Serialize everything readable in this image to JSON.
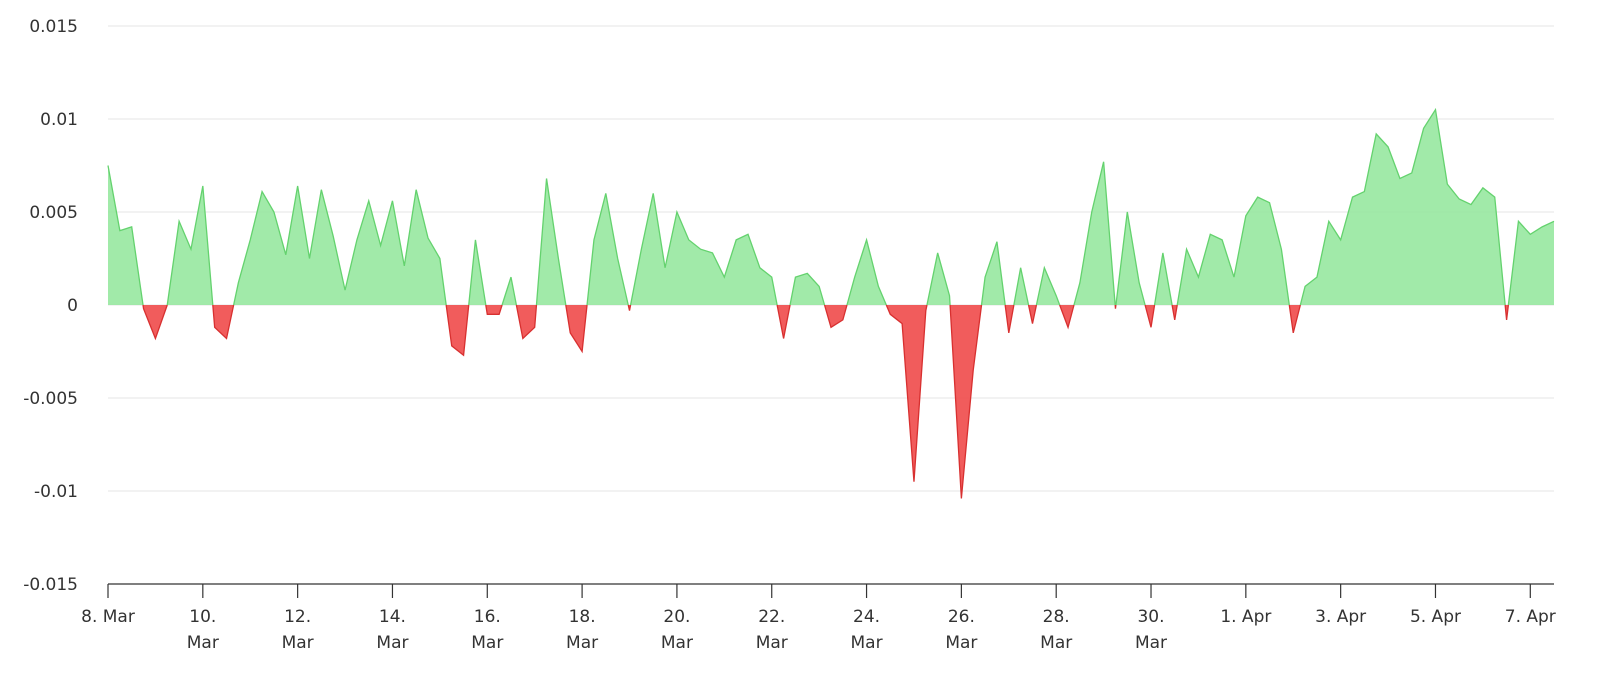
{
  "chart_data": {
    "type": "area",
    "title": "",
    "xlabel": "",
    "ylabel": "",
    "grid": true,
    "legend": "none",
    "x_range": [
      "2024-03-08",
      "2024-04-07T12:00"
    ],
    "ylim": [
      -0.015,
      0.015
    ],
    "y_ticks": [
      -0.015,
      -0.01,
      -0.005,
      0,
      0.005,
      0.01,
      0.015
    ],
    "y_tick_labels": [
      "-0.015",
      "-0.01",
      "-0.005",
      "0",
      "0.005",
      "0.01",
      "0.015"
    ],
    "x_ticks": [
      {
        "date": "2024-03-08",
        "label": [
          "8. Mar"
        ]
      },
      {
        "date": "2024-03-10",
        "label": [
          "10.",
          "Mar"
        ]
      },
      {
        "date": "2024-03-12",
        "label": [
          "12.",
          "Mar"
        ]
      },
      {
        "date": "2024-03-14",
        "label": [
          "14.",
          "Mar"
        ]
      },
      {
        "date": "2024-03-16",
        "label": [
          "16.",
          "Mar"
        ]
      },
      {
        "date": "2024-03-18",
        "label": [
          "18.",
          "Mar"
        ]
      },
      {
        "date": "2024-03-20",
        "label": [
          "20.",
          "Mar"
        ]
      },
      {
        "date": "2024-03-22",
        "label": [
          "22.",
          "Mar"
        ]
      },
      {
        "date": "2024-03-24",
        "label": [
          "24.",
          "Mar"
        ]
      },
      {
        "date": "2024-03-26",
        "label": [
          "26.",
          "Mar"
        ]
      },
      {
        "date": "2024-03-28",
        "label": [
          "28.",
          "Mar"
        ]
      },
      {
        "date": "2024-03-30",
        "label": [
          "30.",
          "Mar"
        ]
      },
      {
        "date": "2024-04-01",
        "label": [
          "1. Apr"
        ]
      },
      {
        "date": "2024-04-03",
        "label": [
          "3. Apr"
        ]
      },
      {
        "date": "2024-04-05",
        "label": [
          "5. Apr"
        ]
      },
      {
        "date": "2024-04-07",
        "label": [
          "7. Apr"
        ]
      }
    ],
    "colors": {
      "positive_fill": "#90e69a",
      "positive_line": "#64d26e",
      "negative_fill": "#f04a4a",
      "negative_line": "#d83030"
    },
    "series": [
      {
        "x": [
          "2024-03-08T00:00",
          "2024-03-08T06:00",
          "2024-03-08T12:00",
          "2024-03-08T18:00",
          "2024-03-09T00:00",
          "2024-03-09T06:00",
          "2024-03-09T12:00",
          "2024-03-09T18:00",
          "2024-03-10T00:00",
          "2024-03-10T06:00",
          "2024-03-10T12:00",
          "2024-03-10T18:00",
          "2024-03-11T00:00",
          "2024-03-11T06:00",
          "2024-03-11T12:00",
          "2024-03-11T18:00",
          "2024-03-12T00:00",
          "2024-03-12T06:00",
          "2024-03-12T12:00",
          "2024-03-12T18:00",
          "2024-03-13T00:00",
          "2024-03-13T06:00",
          "2024-03-13T12:00",
          "2024-03-13T18:00",
          "2024-03-14T00:00",
          "2024-03-14T06:00",
          "2024-03-14T12:00",
          "2024-03-14T18:00",
          "2024-03-15T00:00",
          "2024-03-15T06:00",
          "2024-03-15T12:00",
          "2024-03-15T18:00",
          "2024-03-16T00:00",
          "2024-03-16T06:00",
          "2024-03-16T12:00",
          "2024-03-16T18:00",
          "2024-03-17T00:00",
          "2024-03-17T06:00",
          "2024-03-17T12:00",
          "2024-03-17T18:00",
          "2024-03-18T00:00",
          "2024-03-18T06:00",
          "2024-03-18T12:00",
          "2024-03-18T18:00",
          "2024-03-19T00:00",
          "2024-03-19T06:00",
          "2024-03-19T12:00",
          "2024-03-19T18:00",
          "2024-03-20T00:00",
          "2024-03-20T06:00",
          "2024-03-20T12:00",
          "2024-03-20T18:00",
          "2024-03-21T00:00",
          "2024-03-21T06:00",
          "2024-03-21T12:00",
          "2024-03-21T18:00",
          "2024-03-22T00:00",
          "2024-03-22T06:00",
          "2024-03-22T12:00",
          "2024-03-22T18:00",
          "2024-03-23T00:00",
          "2024-03-23T06:00",
          "2024-03-23T12:00",
          "2024-03-23T18:00",
          "2024-03-24T00:00",
          "2024-03-24T06:00",
          "2024-03-24T12:00",
          "2024-03-24T18:00",
          "2024-03-25T00:00",
          "2024-03-25T06:00",
          "2024-03-25T12:00",
          "2024-03-25T18:00",
          "2024-03-26T00:00",
          "2024-03-26T06:00",
          "2024-03-26T12:00",
          "2024-03-26T18:00",
          "2024-03-27T00:00",
          "2024-03-27T06:00",
          "2024-03-27T12:00",
          "2024-03-27T18:00",
          "2024-03-28T00:00",
          "2024-03-28T06:00",
          "2024-03-28T12:00",
          "2024-03-28T18:00",
          "2024-03-29T00:00",
          "2024-03-29T06:00",
          "2024-03-29T12:00",
          "2024-03-29T18:00",
          "2024-03-30T00:00",
          "2024-03-30T06:00",
          "2024-03-30T12:00",
          "2024-03-30T18:00",
          "2024-03-31T00:00",
          "2024-03-31T06:00",
          "2024-03-31T12:00",
          "2024-03-31T18:00",
          "2024-04-01T00:00",
          "2024-04-01T06:00",
          "2024-04-01T12:00",
          "2024-04-01T18:00",
          "2024-04-02T00:00",
          "2024-04-02T06:00",
          "2024-04-02T12:00",
          "2024-04-02T18:00",
          "2024-04-03T00:00",
          "2024-04-03T06:00",
          "2024-04-03T12:00",
          "2024-04-03T18:00",
          "2024-04-04T00:00",
          "2024-04-04T06:00",
          "2024-04-04T12:00",
          "2024-04-04T18:00",
          "2024-04-05T00:00",
          "2024-04-05T06:00",
          "2024-04-05T12:00",
          "2024-04-05T18:00",
          "2024-04-06T00:00",
          "2024-04-06T06:00",
          "2024-04-06T12:00",
          "2024-04-06T18:00",
          "2024-04-07T00:00",
          "2024-04-07T06:00",
          "2024-04-07T12:00"
        ],
        "y": [
          0.0075,
          0.004,
          0.0042,
          -0.0002,
          -0.0018,
          0.0,
          0.0045,
          0.003,
          0.0064,
          -0.0012,
          -0.0018,
          0.0012,
          0.0035,
          0.0061,
          0.005,
          0.0027,
          0.0064,
          0.0025,
          0.0062,
          0.0037,
          0.0008,
          0.0035,
          0.0056,
          0.0032,
          0.0056,
          0.0021,
          0.0062,
          0.0036,
          0.0025,
          -0.0022,
          -0.0027,
          0.0035,
          -0.0005,
          -0.0005,
          0.0015,
          -0.0018,
          -0.0012,
          0.0068,
          0.0025,
          -0.0015,
          -0.0025,
          0.0035,
          0.006,
          0.0025,
          -0.0003,
          0.003,
          0.006,
          0.002,
          0.005,
          0.0035,
          0.003,
          0.0028,
          0.0015,
          0.0035,
          0.0038,
          0.002,
          0.0015,
          -0.0018,
          0.0015,
          0.0017,
          0.001,
          -0.0012,
          -0.0008,
          0.0015,
          0.0035,
          0.001,
          -0.0005,
          -0.001,
          -0.0095,
          -0.0003,
          0.0028,
          0.0005,
          -0.0104,
          -0.0035,
          0.0015,
          0.0034,
          -0.0015,
          0.002,
          -0.001,
          0.002,
          0.0005,
          -0.0012,
          0.0012,
          0.005,
          0.0077,
          -0.0002,
          0.005,
          0.0012,
          -0.0012,
          0.0028,
          -0.0008,
          0.003,
          0.0015,
          0.0038,
          0.0035,
          0.0015,
          0.0048,
          0.0058,
          0.0055,
          0.003,
          -0.0015,
          0.001,
          0.0015,
          0.0045,
          0.0035,
          0.0058,
          0.0061,
          0.0092,
          0.0085,
          0.0068,
          0.0071,
          0.0095,
          0.0105,
          0.0065,
          0.0057,
          0.0054,
          0.0063,
          0.0058,
          -0.0008,
          0.0045,
          0.0038,
          0.0042,
          0.0045
        ]
      }
    ]
  }
}
